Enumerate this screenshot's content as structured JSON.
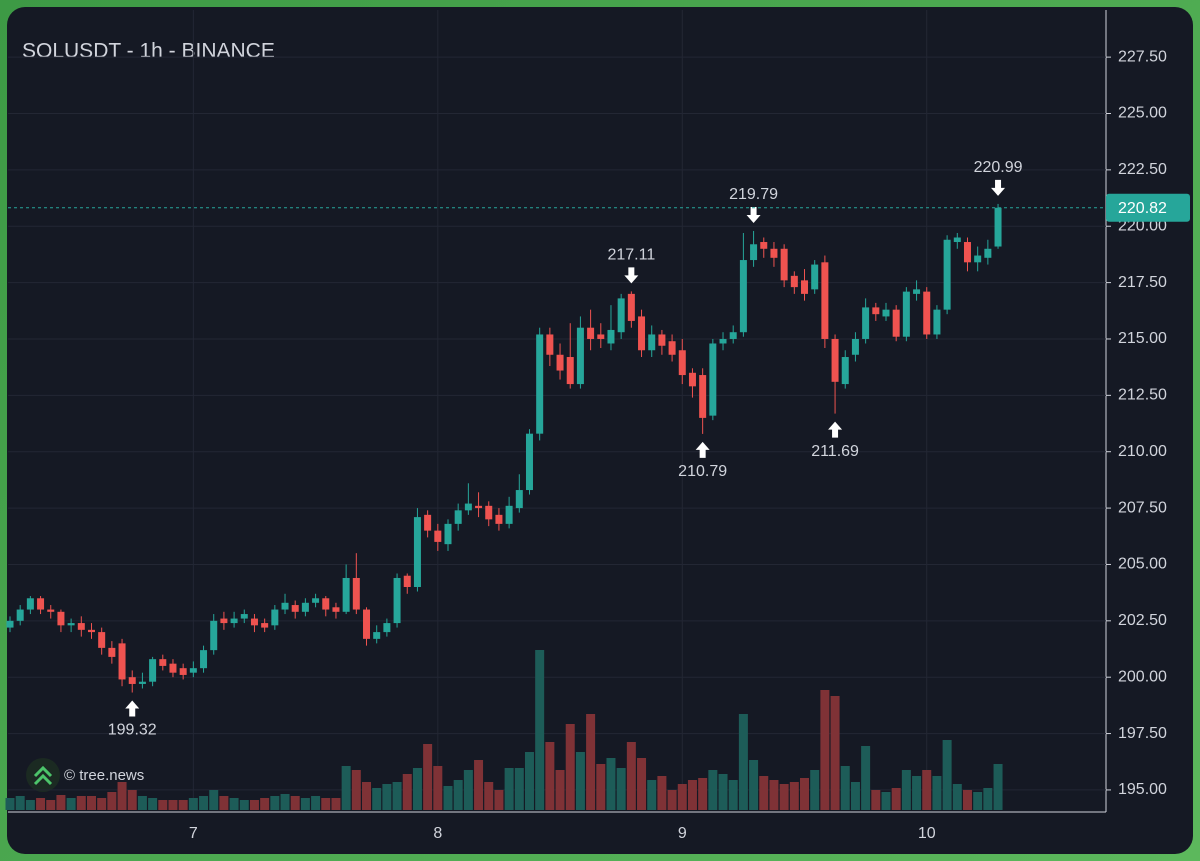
{
  "chart_data": {
    "type": "candlestick",
    "title": "SOLUSDT - 1h - BINANCE",
    "watermark": "© tree.news",
    "categories": [
      null,
      null,
      null,
      null,
      null,
      null,
      null,
      null,
      null,
      null,
      null,
      null,
      null,
      null,
      null,
      null,
      null,
      null,
      "7",
      null,
      null,
      null,
      null,
      null,
      null,
      null,
      null,
      null,
      null,
      null,
      null,
      null,
      null,
      null,
      null,
      null,
      null,
      null,
      null,
      null,
      null,
      null,
      "8",
      null,
      null,
      null,
      null,
      null,
      null,
      null,
      null,
      null,
      null,
      null,
      null,
      null,
      null,
      null,
      null,
      null,
      null,
      null,
      null,
      null,
      null,
      null,
      "9",
      null,
      null,
      null,
      null,
      null,
      null,
      null,
      null,
      null,
      null,
      null,
      null,
      null,
      null,
      null,
      null,
      null,
      null,
      null,
      null,
      null,
      null,
      null,
      "10",
      null,
      null,
      null,
      null,
      null,
      null,
      null
    ],
    "open": [
      202.2,
      202.5,
      203.0,
      203.5,
      203.0,
      202.9,
      202.3,
      202.4,
      202.1,
      202.0,
      201.3,
      201.5,
      200.0,
      199.7,
      199.8,
      200.8,
      200.6,
      200.4,
      200.2,
      200.4,
      201.2,
      202.6,
      202.4,
      202.6,
      202.6,
      202.4,
      202.3,
      203.0,
      203.2,
      202.9,
      203.3,
      203.5,
      203.1,
      202.9,
      204.4,
      203.0,
      201.7,
      202.0,
      202.4,
      204.5,
      204.0,
      207.2,
      206.5,
      205.9,
      206.8,
      207.4,
      207.6,
      207.6,
      207.2,
      206.8,
      207.5,
      208.3,
      210.8,
      215.2,
      214.3,
      214.2,
      213.0,
      215.5,
      215.2,
      214.8,
      215.3,
      217.0,
      216.0,
      214.5,
      215.2,
      214.9,
      214.5,
      213.5,
      213.4,
      211.6,
      214.8,
      215.0,
      215.3,
      218.5,
      219.3,
      219.0,
      219.0,
      217.8,
      217.6,
      217.2,
      218.4,
      215.0,
      213.0,
      214.3,
      215.0,
      216.4,
      216.0,
      216.3,
      215.1,
      217.0,
      217.1,
      215.2,
      216.3,
      219.3,
      219.3,
      218.4,
      218.6,
      219.1
    ],
    "high": [
      202.7,
      203.2,
      203.6,
      203.6,
      203.2,
      203.0,
      202.6,
      202.7,
      202.4,
      202.2,
      201.6,
      201.7,
      200.3,
      200.2,
      200.9,
      201.0,
      200.8,
      200.6,
      200.7,
      201.4,
      202.8,
      202.9,
      202.9,
      203.0,
      202.8,
      202.6,
      203.2,
      203.7,
      203.4,
      203.5,
      203.7,
      203.6,
      203.3,
      205.0,
      205.5,
      203.1,
      202.3,
      202.6,
      204.6,
      204.6,
      207.5,
      207.4,
      206.8,
      207.0,
      207.7,
      208.6,
      208.2,
      207.8,
      207.5,
      208.0,
      209.0,
      211.0,
      215.5,
      215.5,
      214.8,
      215.7,
      216.0,
      216.3,
      215.7,
      216.5,
      217.0,
      217.11,
      216.3,
      215.6,
      215.4,
      215.2,
      215.0,
      213.7,
      213.7,
      215.0,
      215.3,
      215.6,
      219.7,
      219.79,
      219.5,
      219.3,
      219.2,
      218.0,
      218.1,
      218.5,
      218.7,
      215.2,
      214.5,
      215.3,
      216.8,
      216.6,
      216.6,
      216.5,
      217.3,
      217.6,
      217.3,
      216.5,
      219.6,
      219.7,
      219.5,
      219.1,
      219.4,
      220.99
    ],
    "low": [
      202.0,
      202.3,
      202.8,
      202.8,
      202.6,
      202.0,
      202.0,
      201.8,
      201.7,
      201.0,
      200.6,
      199.6,
      199.32,
      199.5,
      199.6,
      200.3,
      200.0,
      199.9,
      200.0,
      200.2,
      201.0,
      202.1,
      202.2,
      202.4,
      202.0,
      202.0,
      202.1,
      202.8,
      202.6,
      202.7,
      203.1,
      202.7,
      202.6,
      202.8,
      202.8,
      201.4,
      201.5,
      201.8,
      202.2,
      203.7,
      203.8,
      206.2,
      205.6,
      205.6,
      206.5,
      207.2,
      207.1,
      206.7,
      206.5,
      206.6,
      207.3,
      208.1,
      210.5,
      213.8,
      213.2,
      212.8,
      212.8,
      214.5,
      214.6,
      214.5,
      215.0,
      215.5,
      214.2,
      214.2,
      214.3,
      214.0,
      213.0,
      212.4,
      210.79,
      211.4,
      214.5,
      214.8,
      215.1,
      218.2,
      218.6,
      218.2,
      217.3,
      217.0,
      216.7,
      217.0,
      214.6,
      211.69,
      212.8,
      214.0,
      214.8,
      215.8,
      215.8,
      214.9,
      214.9,
      216.7,
      215.0,
      215.0,
      216.1,
      219.0,
      218.0,
      218.0,
      218.3,
      219.0
    ],
    "close": [
      202.5,
      203.0,
      203.5,
      203.0,
      202.9,
      202.3,
      202.4,
      202.1,
      202.0,
      201.3,
      200.9,
      199.9,
      199.7,
      199.8,
      200.8,
      200.5,
      200.2,
      200.1,
      200.4,
      201.2,
      202.5,
      202.4,
      202.6,
      202.8,
      202.3,
      202.2,
      203.0,
      203.3,
      202.9,
      203.3,
      203.5,
      203.0,
      202.9,
      204.4,
      203.0,
      201.7,
      202.0,
      202.4,
      204.4,
      204.0,
      207.1,
      206.5,
      206.0,
      206.8,
      207.4,
      207.7,
      207.5,
      207.0,
      206.8,
      207.6,
      208.3,
      210.8,
      215.2,
      214.3,
      213.6,
      213.0,
      215.5,
      215.0,
      215.0,
      215.4,
      216.8,
      215.8,
      214.5,
      215.2,
      214.7,
      214.3,
      213.4,
      212.9,
      211.5,
      214.8,
      215.0,
      215.3,
      218.5,
      219.2,
      219.0,
      218.6,
      217.6,
      217.3,
      217.0,
      218.3,
      215.0,
      213.1,
      214.2,
      215.0,
      216.4,
      216.1,
      216.3,
      215.1,
      217.1,
      217.2,
      215.2,
      216.3,
      219.4,
      219.5,
      218.4,
      218.7,
      219.0,
      220.82
    ],
    "volume": [
      12,
      14,
      10,
      12,
      10,
      15,
      12,
      14,
      14,
      12,
      18,
      28,
      20,
      14,
      12,
      10,
      10,
      10,
      12,
      14,
      20,
      14,
      12,
      10,
      10,
      12,
      14,
      16,
      14,
      12,
      14,
      12,
      12,
      44,
      40,
      28,
      22,
      26,
      28,
      36,
      42,
      66,
      44,
      24,
      30,
      40,
      50,
      28,
      20,
      42,
      42,
      58,
      160,
      68,
      40,
      86,
      58,
      96,
      46,
      52,
      42,
      68,
      52,
      30,
      34,
      20,
      26,
      30,
      32,
      40,
      36,
      30,
      96,
      50,
      34,
      30,
      26,
      28,
      32,
      40,
      120,
      114,
      44,
      28,
      64,
      20,
      18,
      22,
      40,
      34,
      40,
      34,
      70,
      26,
      20,
      18,
      22,
      46
    ],
    "annotations": [
      199.32,
      217.11,
      219.79,
      210.79,
      211.69,
      220.99
    ],
    "last_price": 220.82,
    "ylim": [
      194.11,
      229.59
    ],
    "yticks": [
      {
        "value": 195,
        "label": "195.00"
      },
      {
        "value": 197.5,
        "label": "197.50"
      },
      {
        "value": 200,
        "label": "200.00"
      },
      {
        "value": 202.5,
        "label": "202.50"
      },
      {
        "value": 205,
        "label": "205.00"
      },
      {
        "value": 207.5,
        "label": "207.50"
      },
      {
        "value": 210,
        "label": "210.00"
      },
      {
        "value": 212.5,
        "label": "212.50"
      },
      {
        "value": 215,
        "label": "215.00"
      },
      {
        "value": 217.5,
        "label": "217.50"
      },
      {
        "value": 220,
        "label": "220.00"
      },
      {
        "value": 222.5,
        "label": "222.50"
      },
      {
        "value": 225,
        "label": "225.00"
      },
      {
        "value": 227.5,
        "label": "227.50"
      }
    ],
    "grid": true,
    "up_color": "#26a69a",
    "down_color": "#ef5350",
    "volume_up_color": "#1d5c58",
    "volume_down_color": "#7f3236"
  }
}
